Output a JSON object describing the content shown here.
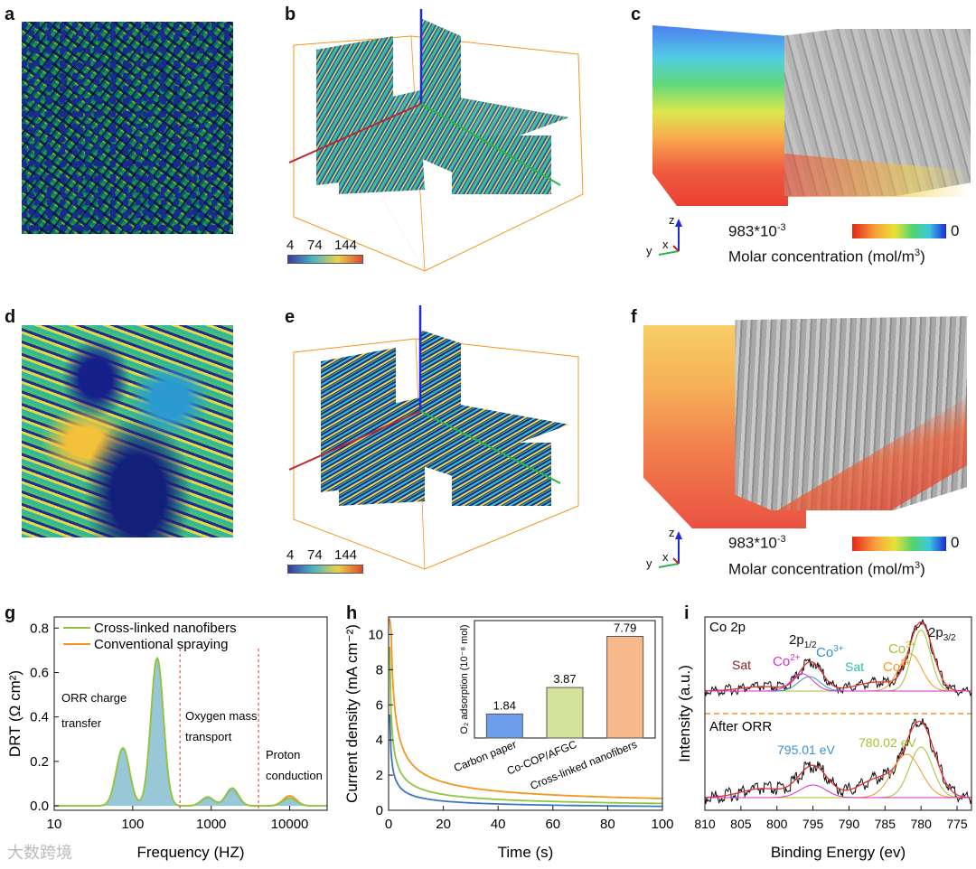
{
  "panels": {
    "a": "a",
    "b": "b",
    "c": "c",
    "d": "d",
    "e": "e",
    "f": "f",
    "g": "g",
    "h": "h",
    "i": "i"
  },
  "colorbar_small": {
    "v1": "4",
    "v2": "74",
    "v3": "144"
  },
  "conc_legend": {
    "max_label": "983*10",
    "max_exp": "-3",
    "min_label": "0",
    "caption_main": "Molar concentration (mol/m",
    "caption_exp": "3",
    "caption_end": ")"
  },
  "axes_triad": {
    "x": "x",
    "y": "y",
    "z": "z"
  },
  "watermark": "大数跨境",
  "chart_data": [
    {
      "id": "g",
      "type": "line",
      "title": "",
      "xlabel": "Frequency (HZ)",
      "ylabel": "DRT (Ω cm²)",
      "xscale": "log",
      "xlim": [
        10,
        30000
      ],
      "ylim": [
        -0.02,
        0.85
      ],
      "xticks": [
        "10",
        "100",
        "1000",
        "10000"
      ],
      "yticks": [
        "0.0",
        "0.2",
        "0.4",
        "0.6",
        "0.8"
      ],
      "legend": [
        "Cross-linked nanofibers",
        "Conventional spraying"
      ],
      "series": [
        {
          "name": "Cross-linked nanofibers",
          "color": "#8dc63f",
          "peaks": [
            [
              75,
              0.26,
              0.085
            ],
            [
              205,
              0.665,
              0.08
            ],
            [
              900,
              0.04,
              0.08
            ],
            [
              1850,
              0.08,
              0.08
            ],
            [
              10000,
              0.035,
              0.085
            ]
          ]
        },
        {
          "name": "Conventional spraying",
          "color": "#f7941d",
          "peaks": [
            [
              75,
              0.26,
              0.085
            ],
            [
              205,
              0.665,
              0.08
            ],
            [
              900,
              0.035,
              0.08
            ],
            [
              1850,
              0.07,
              0.08
            ],
            [
              10000,
              0.045,
              0.085
            ]
          ]
        }
      ],
      "dividers_hz": [
        400,
        4000
      ],
      "annotations": {
        "orr_1": "ORR charge",
        "orr_2": "transfer",
        "oxy_1": "Oxygen mass",
        "oxy_2": "transport",
        "proton_1": "Proton",
        "proton_2": "conduction"
      }
    },
    {
      "id": "h",
      "type": "line",
      "xlabel": "Time (s)",
      "ylabel": "Current density (mA cm⁻²)",
      "xlim": [
        0,
        100
      ],
      "ylim": [
        0,
        11
      ],
      "xticks": [
        "0",
        "20",
        "40",
        "60",
        "80",
        "100"
      ],
      "yticks": [
        "0",
        "2",
        "4",
        "6",
        "8",
        "10"
      ],
      "series": [
        {
          "name": "Cross-linked nanofibers",
          "color": "#f7941d",
          "a": 10.5,
          "b": 1.6
        },
        {
          "name": "Co-COP/AFGC",
          "color": "#8dc63f",
          "a": 5.8,
          "b": 1.1
        },
        {
          "name": "Carbon paper",
          "color": "#3b75c4",
          "a": 3.4,
          "b": 0.6
        }
      ],
      "inset": {
        "type": "bar",
        "ylabel": "O₂ adsorption (10⁻⁸ mol)",
        "categories": [
          "Carbon paper",
          "Co-COP/AFGC",
          "Cross-linked nanofibers"
        ],
        "values": [
          1.84,
          3.87,
          7.79
        ],
        "value_labels": [
          "1.84",
          "3.87",
          "7.79"
        ],
        "colors": [
          "#6d9eeb",
          "#d4e39a",
          "#f7b98a"
        ]
      }
    },
    {
      "id": "i",
      "type": "line",
      "xlabel": "Binding Energy (ev)",
      "ylabel": "Intensity (a.u.)",
      "xlim": [
        810,
        773
      ],
      "xticks": [
        "810",
        "805",
        "800",
        "795",
        "790",
        "785",
        "780",
        "775"
      ],
      "labels": {
        "top_title": "Co 2p",
        "bottom_title": "After ORR",
        "p12": "2p",
        "p12_sub": "1/2",
        "p32": "2p",
        "p32_sub": "3/2",
        "sat_left": "Sat",
        "sat_mid": "Sat",
        "co2_a": "Co",
        "co2_a_sup": "2+",
        "co3_a": "Co",
        "co3_a_sup": "3+",
        "co3_b": "Co",
        "co3_b_sup": "3+",
        "co2_b": "Co",
        "co2_b_sup": "2+",
        "ev1": "795.01 eV",
        "ev2": "780.02 eV"
      }
    }
  ]
}
